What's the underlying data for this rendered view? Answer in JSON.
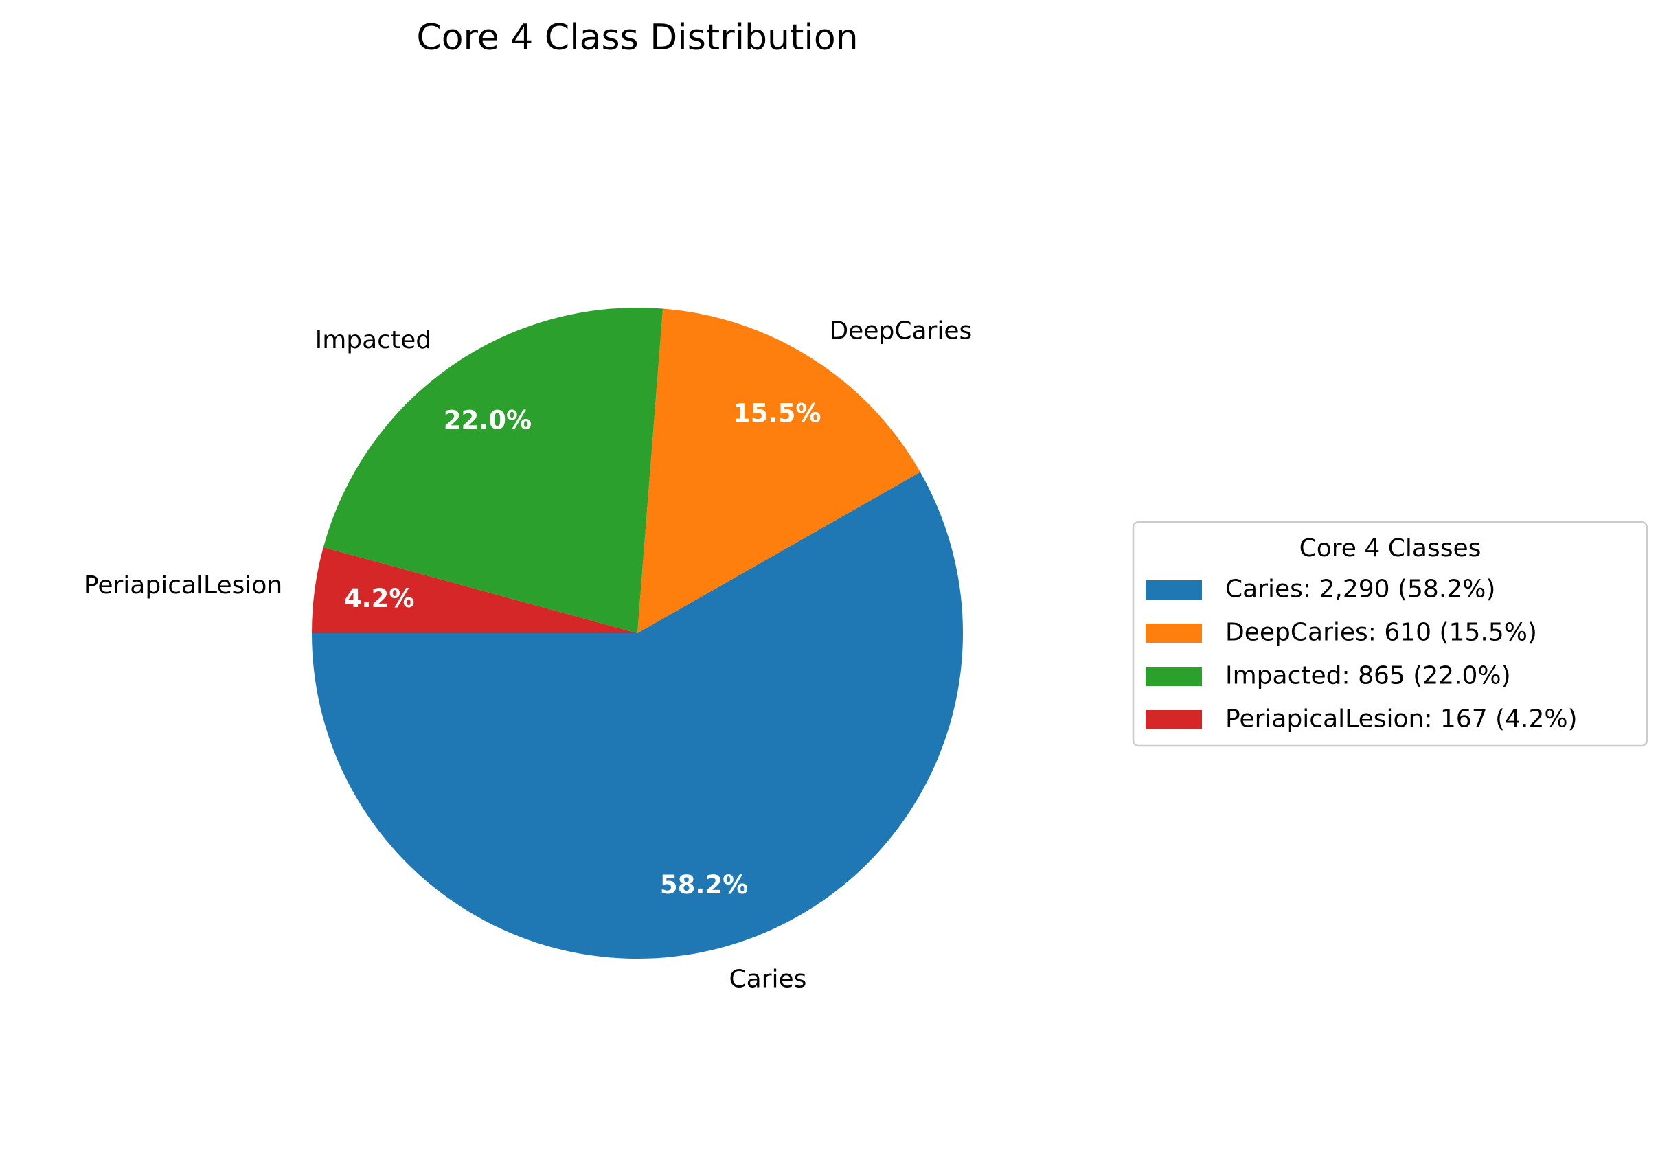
{
  "chart_data": {
    "type": "pie",
    "title": "Core 4 Class Distribution",
    "categories": [
      "Caries",
      "DeepCaries",
      "Impacted",
      "PeriapicalLesion"
    ],
    "values": [
      2290,
      610,
      865,
      167
    ],
    "percent_labels": [
      "58.2%",
      "15.5%",
      "22.0%",
      "4.2%"
    ],
    "colors": [
      "#1f77b4",
      "#ff7f0e",
      "#2ca02c",
      "#d62728"
    ],
    "start_angle_deg": 180,
    "direction": "counterclockwise",
    "legend": {
      "title": "Core 4 Classes",
      "placement": "center-right",
      "entries": [
        "Caries: 2,290 (58.2%)",
        "DeepCaries: 610 (15.5%)",
        "Impacted: 865 (22.0%)",
        "PeriapicalLesion: 167 (4.2%)"
      ]
    }
  }
}
